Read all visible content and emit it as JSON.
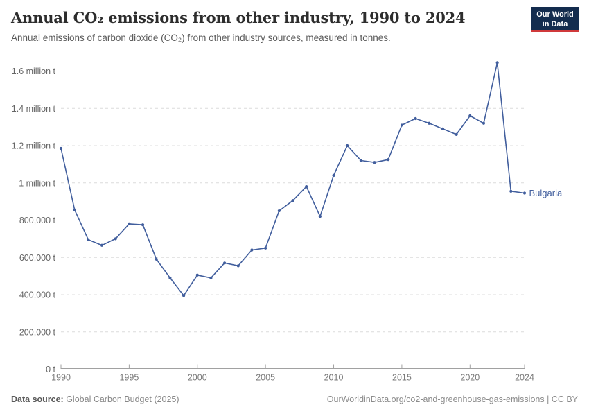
{
  "header": {
    "title": "Annual CO₂ emissions from other industry, 1990 to 2024",
    "subtitle": "Annual emissions of carbon dioxide (CO₂) from other industry sources, measured in tonnes.",
    "logo": {
      "line1": "Our World",
      "line2": "in Data"
    }
  },
  "chart_data": {
    "type": "line",
    "title": "Annual CO₂ emissions from other industry, 1990 to 2024",
    "xlabel": "",
    "ylabel": "",
    "xlim": [
      1990,
      2024
    ],
    "ylim": [
      0,
      1600000
    ],
    "grid": "horizontal-dashed",
    "legend_position": "end-of-line-label",
    "x_ticks": [
      1990,
      1995,
      2000,
      2005,
      2010,
      2015,
      2020,
      2024
    ],
    "y_ticks": [
      {
        "value": 0,
        "label": "0 t"
      },
      {
        "value": 200000,
        "label": "200,000 t"
      },
      {
        "value": 400000,
        "label": "400,000 t"
      },
      {
        "value": 600000,
        "label": "600,000 t"
      },
      {
        "value": 800000,
        "label": "800,000 t"
      },
      {
        "value": 1000000,
        "label": "1 million t"
      },
      {
        "value": 1200000,
        "label": "1.2 million t"
      },
      {
        "value": 1400000,
        "label": "1.4 million t"
      },
      {
        "value": 1600000,
        "label": "1.6 million t"
      }
    ],
    "x": [
      1990,
      1991,
      1992,
      1993,
      1994,
      1995,
      1996,
      1997,
      1998,
      1999,
      2000,
      2001,
      2002,
      2003,
      2004,
      2005,
      2006,
      2007,
      2008,
      2009,
      2010,
      2011,
      2012,
      2013,
      2014,
      2015,
      2016,
      2017,
      2018,
      2019,
      2020,
      2021,
      2022,
      2023,
      2024
    ],
    "series": [
      {
        "name": "Bulgaria",
        "color": "#415e9d",
        "values": [
          1185000,
          855000,
          695000,
          665000,
          700000,
          780000,
          775000,
          590000,
          490000,
          395000,
          505000,
          490000,
          570000,
          555000,
          640000,
          650000,
          850000,
          905000,
          980000,
          820000,
          1040000,
          1200000,
          1120000,
          1110000,
          1125000,
          1310000,
          1345000,
          1320000,
          1290000,
          1260000,
          1360000,
          1320000,
          1645000,
          955000,
          945000
        ]
      }
    ]
  },
  "colors": {
    "line": "#415e9d",
    "gridline": "#dcdcdc",
    "axis": "#a1a1a1",
    "y_tick_label": "#666666",
    "x_tick_label": "#7a7a7a"
  },
  "footer": {
    "datasource_label": "Data source:",
    "datasource_value": " Global Carbon Budget (2025)",
    "link": "OurWorldinData.org/co2-and-greenhouse-gas-emissions | CC BY"
  }
}
